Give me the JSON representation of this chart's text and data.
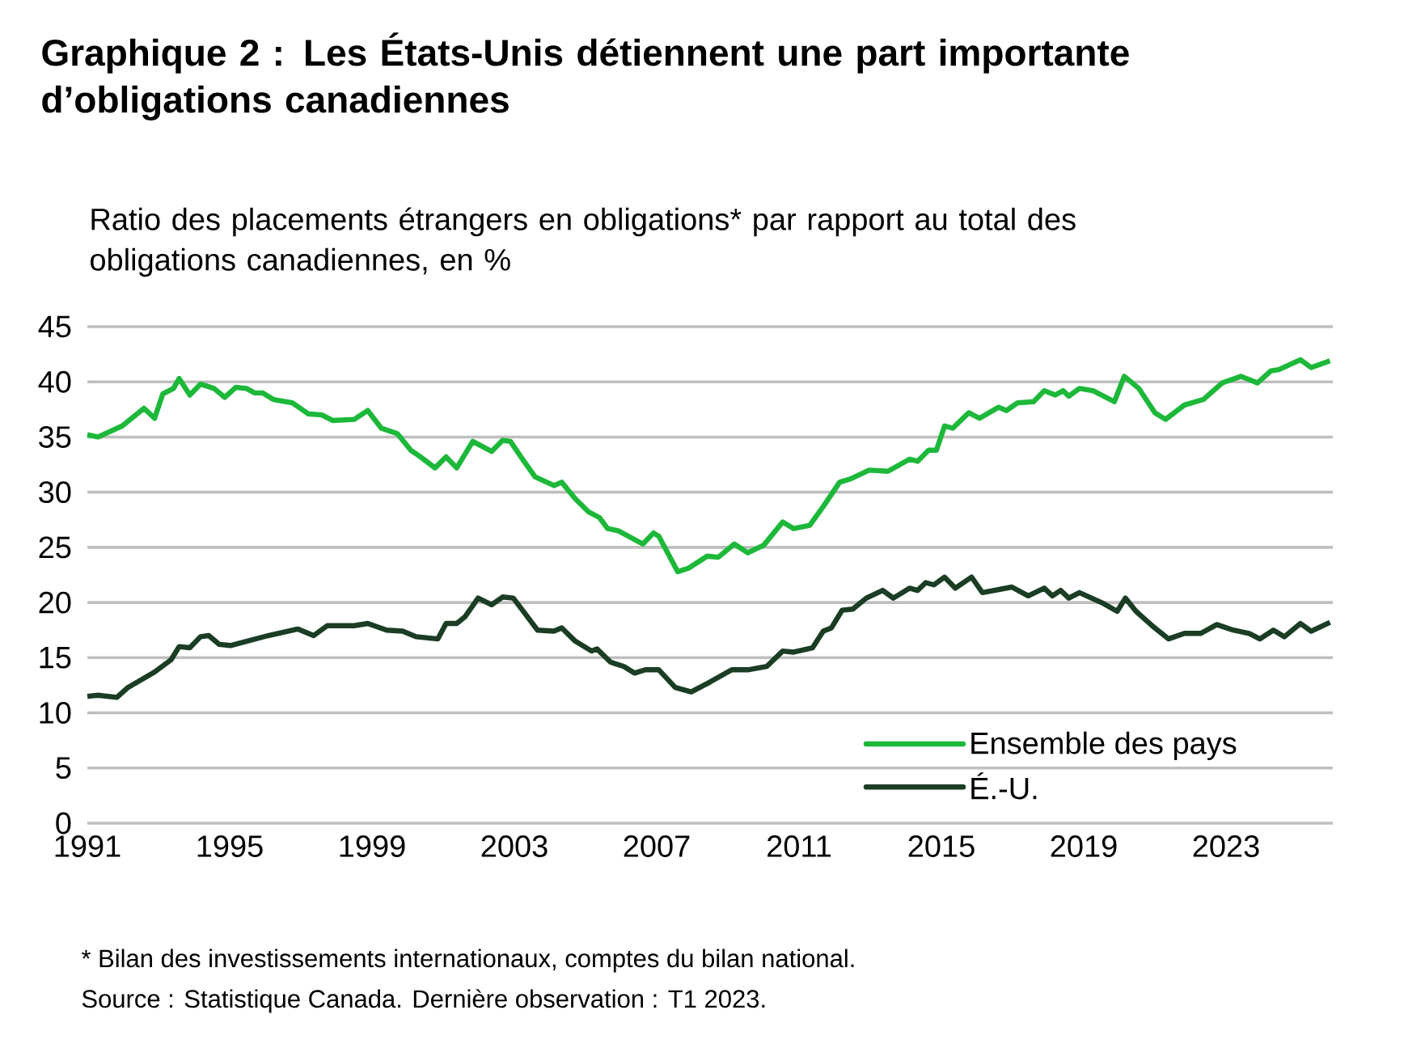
{
  "chart_data": {
    "type": "line",
    "title": "Graphique 2 : Les États-Unis détiennent une part importante d’obligations canadiennes",
    "ylabel": "Ratio des placements étrangers en obligations* par rapport au total des obligations canadiennes, en %",
    "annotations": [
      "* Bilan des investissements internationaux, comptes du bilan national.",
      "Source : Statistique Canada. Dernière observation : T1 2023."
    ],
    "xlim": [
      1991,
      2026
    ],
    "xticks": [
      1991,
      1995,
      1999,
      2003,
      2007,
      2011,
      2015,
      2019,
      2023
    ],
    "ylim": [
      0,
      45
    ],
    "yticks": [
      0,
      5,
      10,
      15,
      20,
      25,
      30,
      35,
      40,
      45
    ],
    "grid": "y",
    "legend": "bottom right",
    "series": [
      {
        "name": "Ensemble des pays",
        "color": "#1db83a",
        "x": [
          1991.0,
          1991.3,
          1991.98,
          1992.59,
          1992.89,
          1993.12,
          1993.42,
          1993.58,
          1993.88,
          1994.18,
          1994.56,
          1994.86,
          1995.17,
          1995.47,
          1995.7,
          1995.92,
          1996.23,
          1996.76,
          1997.21,
          1997.59,
          1997.89,
          1998.5,
          1998.88,
          1999.26,
          1999.71,
          2000.09,
          2000.32,
          2000.77,
          2001.08,
          2001.38,
          2001.83,
          2002.36,
          2002.67,
          2002.89,
          2003.27,
          2003.58,
          2004.11,
          2004.33,
          2004.71,
          2005.09,
          2005.39,
          2005.62,
          2005.92,
          2006.61,
          2006.91,
          2007.06,
          2007.59,
          2007.89,
          2008.42,
          2008.73,
          2009.18,
          2009.56,
          2010.01,
          2010.54,
          2010.85,
          2011.3,
          2011.68,
          2012.14,
          2012.44,
          2012.97,
          2013.5,
          2014.11,
          2014.33,
          2014.64,
          2014.86,
          2015.09,
          2015.32,
          2015.77,
          2016.07,
          2016.61,
          2016.83,
          2017.14,
          2017.59,
          2017.89,
          2018.2,
          2018.42,
          2018.58,
          2018.88,
          2019.26,
          2019.86,
          2020.14,
          2020.55,
          2021.0,
          2021.3,
          2021.83,
          2022.36,
          2022.89,
          2023.42,
          2023.88,
          2024.26,
          2024.48,
          2025.09,
          2025.39,
          2025.92
        ],
        "values": [
          35.2,
          35.0,
          36.0,
          37.6,
          36.7,
          38.9,
          39.4,
          40.3,
          38.8,
          39.8,
          39.4,
          38.6,
          39.5,
          39.4,
          39.0,
          39.0,
          38.4,
          38.1,
          37.1,
          37.0,
          36.5,
          36.6,
          37.4,
          35.8,
          35.3,
          33.8,
          33.3,
          32.2,
          33.2,
          32.2,
          34.6,
          33.7,
          34.7,
          34.6,
          32.8,
          31.4,
          30.6,
          30.9,
          29.4,
          28.2,
          27.7,
          26.7,
          26.5,
          25.3,
          26.3,
          26.0,
          22.8,
          23.1,
          24.2,
          24.1,
          25.3,
          24.5,
          25.2,
          27.3,
          26.7,
          27.0,
          28.7,
          30.9,
          31.2,
          32.0,
          31.9,
          33.0,
          32.8,
          33.8,
          33.8,
          36.0,
          35.8,
          37.2,
          36.7,
          37.7,
          37.4,
          38.1,
          38.2,
          39.2,
          38.8,
          39.2,
          38.7,
          39.4,
          39.2,
          38.2,
          40.5,
          39.4,
          37.2,
          36.6,
          37.9,
          38.4,
          39.9,
          40.5,
          39.9,
          41.0,
          41.1,
          42.0,
          41.3,
          41.9
        ]
      },
      {
        "name": "É.-U.",
        "color": "#1a3d23",
        "x": [
          1991.0,
          1991.3,
          1991.83,
          1992.14,
          1992.89,
          1993.35,
          1993.58,
          1993.88,
          1994.18,
          1994.41,
          1994.71,
          1995.02,
          1996.08,
          1996.91,
          1997.36,
          1997.74,
          1998.5,
          1998.88,
          1999.41,
          1999.86,
          2000.24,
          2000.85,
          2001.08,
          2001.38,
          2001.61,
          2001.98,
          2002.36,
          2002.67,
          2002.97,
          2003.65,
          2004.11,
          2004.33,
          2004.71,
          2005.17,
          2005.32,
          2005.7,
          2006.08,
          2006.38,
          2006.68,
          2007.06,
          2007.52,
          2007.97,
          2008.5,
          2009.11,
          2009.56,
          2010.09,
          2010.54,
          2010.85,
          2011.38,
          2011.68,
          2011.91,
          2012.21,
          2012.51,
          2012.89,
          2013.35,
          2013.65,
          2014.11,
          2014.33,
          2014.56,
          2014.79,
          2015.09,
          2015.39,
          2015.85,
          2016.15,
          2016.98,
          2017.44,
          2017.89,
          2018.12,
          2018.35,
          2018.58,
          2018.88,
          2019.56,
          2019.94,
          2020.17,
          2020.47,
          2020.92,
          2021.38,
          2021.83,
          2022.29,
          2022.74,
          2023.2,
          2023.65,
          2023.95,
          2024.33,
          2024.64,
          2025.09,
          2025.39,
          2025.92
        ],
        "values": [
          11.5,
          11.6,
          11.4,
          12.3,
          13.7,
          14.8,
          16.0,
          15.9,
          16.9,
          17.0,
          16.2,
          16.1,
          17.0,
          17.6,
          17.0,
          17.9,
          17.9,
          18.1,
          17.5,
          17.4,
          16.9,
          16.7,
          18.1,
          18.1,
          18.7,
          20.4,
          19.8,
          20.5,
          20.4,
          17.5,
          17.4,
          17.7,
          16.5,
          15.6,
          15.8,
          14.6,
          14.2,
          13.6,
          13.9,
          13.9,
          12.3,
          11.9,
          12.8,
          13.9,
          13.9,
          14.2,
          15.6,
          15.5,
          15.9,
          17.4,
          17.7,
          19.3,
          19.4,
          20.4,
          21.1,
          20.4,
          21.3,
          21.1,
          21.8,
          21.6,
          22.3,
          21.3,
          22.3,
          20.9,
          21.4,
          20.6,
          21.3,
          20.6,
          21.1,
          20.4,
          20.9,
          19.9,
          19.2,
          20.4,
          19.2,
          17.9,
          16.7,
          17.2,
          17.2,
          18.0,
          17.5,
          17.2,
          16.7,
          17.5,
          16.9,
          18.1,
          17.4,
          18.2
        ]
      }
    ]
  }
}
